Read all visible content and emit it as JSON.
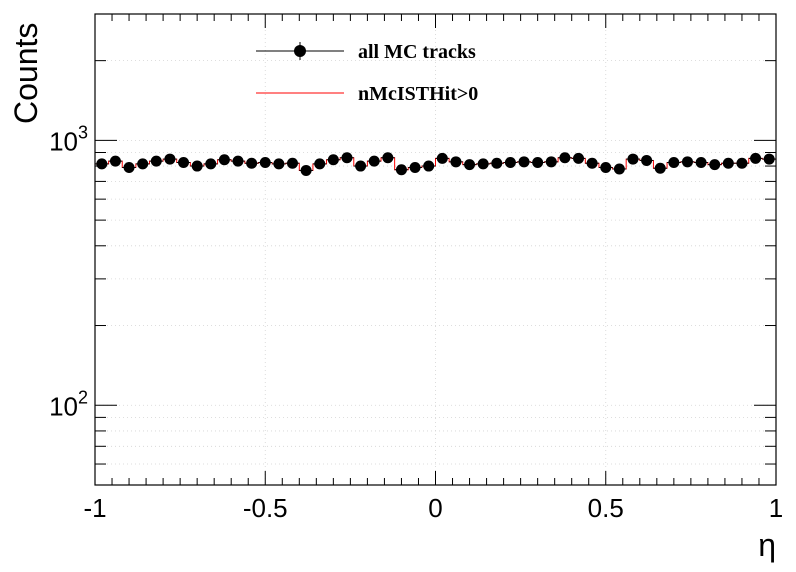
{
  "chart_data": {
    "type": "line",
    "x_label": "η",
    "y_label": "Counts",
    "x_range": [
      -1,
      1
    ],
    "y_range": [
      50,
      3000
    ],
    "y_scale": "log",
    "grid": true,
    "legend_position": "top-center",
    "x_ticks": [
      -1,
      -0.5,
      0,
      0.5,
      1
    ],
    "x_tick_labels": [
      "-1",
      "-0.5",
      "0",
      "0.5",
      "1"
    ],
    "y_tick_labels": [
      {
        "value": 100,
        "base": "10",
        "exponent": "2"
      },
      {
        "value": 1000,
        "base": "10",
        "exponent": "3"
      }
    ],
    "bin_edges_range": [
      -1,
      1
    ],
    "bin_count": 50,
    "series": [
      {
        "name": "all MC tracks",
        "style": "markers-with-errors",
        "color": "#000000",
        "values": [
          815,
          835,
          790,
          815,
          835,
          850,
          825,
          800,
          815,
          845,
          835,
          820,
          825,
          815,
          820,
          770,
          815,
          845,
          860,
          800,
          835,
          860,
          775,
          790,
          800,
          855,
          830,
          810,
          815,
          820,
          825,
          830,
          825,
          830,
          860,
          855,
          820,
          790,
          780,
          850,
          840,
          785,
          825,
          830,
          825,
          810,
          820,
          820,
          855,
          850
        ]
      },
      {
        "name": "nMcISTHit>0",
        "style": "step",
        "color": "#ff0000",
        "values": [
          815,
          835,
          790,
          815,
          835,
          850,
          825,
          800,
          815,
          845,
          835,
          820,
          825,
          815,
          820,
          770,
          815,
          845,
          860,
          800,
          835,
          860,
          775,
          790,
          800,
          855,
          830,
          810,
          815,
          820,
          825,
          830,
          825,
          830,
          860,
          855,
          820,
          790,
          780,
          850,
          840,
          785,
          825,
          830,
          825,
          810,
          820,
          820,
          855,
          850
        ]
      }
    ]
  }
}
